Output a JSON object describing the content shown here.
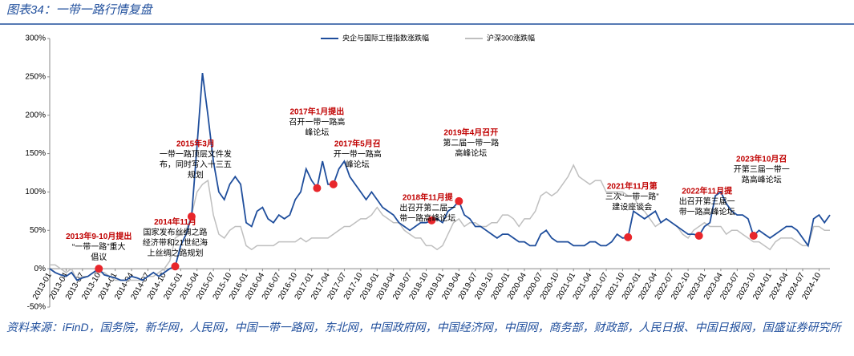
{
  "header": {
    "title": "图表34：一带一路行情复盘"
  },
  "chart_data": {
    "type": "line",
    "x": [
      "2013-01",
      "2013-02",
      "2013-03",
      "2013-04",
      "2013-05",
      "2013-06",
      "2013-07",
      "2013-08",
      "2013-09",
      "2013-10",
      "2013-11",
      "2013-12",
      "2014-01",
      "2014-02",
      "2014-03",
      "2014-04",
      "2014-05",
      "2014-06",
      "2014-07",
      "2014-08",
      "2014-09",
      "2014-10",
      "2014-11",
      "2014-12",
      "2015-01",
      "2015-02",
      "2015-03",
      "2015-04",
      "2015-05",
      "2015-06",
      "2015-07",
      "2015-08",
      "2015-09",
      "2015-10",
      "2015-11",
      "2015-12",
      "2016-01",
      "2016-02",
      "2016-03",
      "2016-04",
      "2016-05",
      "2016-06",
      "2016-07",
      "2016-08",
      "2016-09",
      "2016-10",
      "2016-11",
      "2016-12",
      "2017-01",
      "2017-02",
      "2017-03",
      "2017-04",
      "2017-05",
      "2017-06",
      "2017-07",
      "2017-08",
      "2017-09",
      "2017-10",
      "2017-11",
      "2017-12",
      "2018-01",
      "2018-02",
      "2018-03",
      "2018-04",
      "2018-05",
      "2018-06",
      "2018-07",
      "2018-08",
      "2018-09",
      "2018-10",
      "2018-11",
      "2018-12",
      "2019-01",
      "2019-02",
      "2019-03",
      "2019-04",
      "2019-05",
      "2019-06",
      "2019-07",
      "2019-08",
      "2019-09",
      "2019-10",
      "2019-11",
      "2019-12",
      "2020-01",
      "2020-02",
      "2020-03",
      "2020-04",
      "2020-05",
      "2020-06",
      "2020-07",
      "2020-08",
      "2020-09",
      "2020-10",
      "2020-11",
      "2020-12",
      "2021-01",
      "2021-02",
      "2021-03",
      "2021-04",
      "2021-05",
      "2021-06",
      "2021-07",
      "2021-08",
      "2021-09",
      "2021-10",
      "2021-11",
      "2021-12",
      "2022-01",
      "2022-02",
      "2022-03",
      "2022-04",
      "2022-05",
      "2022-06",
      "2022-07",
      "2022-08",
      "2022-09",
      "2022-10",
      "2022-11",
      "2022-12",
      "2023-01",
      "2023-02",
      "2023-03",
      "2023-04",
      "2023-05",
      "2023-06",
      "2023-07",
      "2023-08",
      "2023-09",
      "2023-10",
      "2023-11",
      "2023-12",
      "2024-01",
      "2024-02",
      "2024-03",
      "2024-04",
      "2024-05",
      "2024-06",
      "2024-07",
      "2024-08",
      "2024-09",
      "2024-10",
      "2024-11",
      "2024-12"
    ],
    "series": [
      {
        "name": "央企与国际工程指数涨跌幅",
        "color": "#1f4e9c",
        "values": [
          0,
          -5,
          -8,
          -10,
          -5,
          -15,
          -12,
          -10,
          -5,
          0,
          -8,
          -10,
          -12,
          -15,
          -15,
          -10,
          -12,
          -15,
          -10,
          -5,
          -10,
          -5,
          0,
          3,
          30,
          45,
          68,
          160,
          255,
          200,
          140,
          100,
          90,
          110,
          120,
          110,
          60,
          55,
          75,
          80,
          65,
          60,
          70,
          65,
          70,
          90,
          100,
          130,
          115,
          105,
          140,
          110,
          110,
          130,
          140,
          120,
          110,
          100,
          90,
          100,
          90,
          80,
          75,
          70,
          60,
          55,
          50,
          55,
          60,
          60,
          63,
          65,
          60,
          75,
          80,
          88,
          70,
          65,
          55,
          55,
          50,
          45,
          40,
          45,
          45,
          40,
          35,
          35,
          30,
          30,
          45,
          50,
          40,
          35,
          35,
          35,
          30,
          30,
          30,
          35,
          35,
          30,
          30,
          35,
          45,
          40,
          41,
          75,
          70,
          65,
          70,
          75,
          60,
          65,
          60,
          55,
          50,
          45,
          45,
          43,
          55,
          60,
          95,
          100,
          85,
          75,
          70,
          70,
          65,
          43,
          50,
          45,
          40,
          45,
          50,
          55,
          55,
          50,
          40,
          30,
          65,
          70,
          60,
          70
        ]
      },
      {
        "name": "沪深300涨跌幅",
        "color": "#bfbfbf",
        "values": [
          5,
          5,
          0,
          -5,
          0,
          -15,
          -10,
          -10,
          -5,
          -5,
          -5,
          -10,
          -15,
          -15,
          -15,
          -15,
          -15,
          -15,
          -10,
          -10,
          -5,
          0,
          10,
          40,
          45,
          50,
          70,
          100,
          110,
          115,
          70,
          45,
          40,
          50,
          55,
          55,
          30,
          25,
          30,
          30,
          30,
          30,
          35,
          35,
          35,
          35,
          40,
          35,
          40,
          40,
          40,
          40,
          45,
          50,
          55,
          55,
          60,
          65,
          65,
          70,
          80,
          70,
          65,
          60,
          60,
          50,
          45,
          40,
          40,
          30,
          30,
          25,
          30,
          45,
          60,
          65,
          55,
          60,
          60,
          55,
          55,
          60,
          60,
          70,
          70,
          65,
          55,
          65,
          65,
          75,
          95,
          100,
          95,
          100,
          110,
          120,
          135,
          120,
          115,
          110,
          115,
          115,
          100,
          100,
          100,
          100,
          95,
          95,
          80,
          75,
          65,
          55,
          60,
          65,
          60,
          55,
          45,
          40,
          50,
          55,
          60,
          55,
          55,
          55,
          45,
          50,
          50,
          45,
          40,
          35,
          35,
          30,
          25,
          35,
          40,
          40,
          40,
          35,
          30,
          30,
          55,
          55,
          50,
          50
        ]
      }
    ],
    "ylim": [
      -50,
      300
    ],
    "yticks": [
      {
        "value": -50,
        "label": "-50%"
      },
      {
        "value": 0,
        "label": "0%"
      },
      {
        "value": 50,
        "label": "50%"
      },
      {
        "value": 100,
        "label": "100%"
      },
      {
        "value": 150,
        "label": "150%"
      },
      {
        "value": 200,
        "label": "200%"
      },
      {
        "value": 250,
        "label": "250%"
      },
      {
        "value": 300,
        "label": "300%"
      }
    ],
    "annotations": [
      {
        "x": "2013-10",
        "head": "2013年9-10月提出",
        "lines": [
          "“一带一路”重大",
          "倡议"
        ]
      },
      {
        "x": "2014-12",
        "head": "2014年11月",
        "lines": [
          "国家发布丝绸之路",
          "经济带和21世纪海",
          "上丝绸之路规划"
        ]
      },
      {
        "x": "2015-03",
        "head": "2015年3月",
        "lines": [
          "一带一路顶层文件发",
          "布，同时写入十三五",
          "规划"
        ]
      },
      {
        "x": "2017-02",
        "head": "2017年1月提出",
        "lines": [
          "召开一带一路高",
          "峰论坛"
        ]
      },
      {
        "x": "2017-05",
        "head": "2017年5月召",
        "lines": [
          "开一带一路高",
          "峰论坛"
        ]
      },
      {
        "x": "2018-11",
        "head": "2018年11月提",
        "lines": [
          "出召开第二届一",
          "带一路高峰论坛"
        ]
      },
      {
        "x": "2019-04",
        "head": "2019年4月召开",
        "lines": [
          "第二届一带一路",
          "高峰论坛"
        ]
      },
      {
        "x": "2021-11",
        "head": "2021年11月第",
        "lines": [
          "三次“一带一路”",
          "建设座谈会"
        ]
      },
      {
        "x": "2022-12",
        "head": "2022年11月提",
        "lines": [
          "出召开第三届一",
          "带一路高峰论坛"
        ]
      },
      {
        "x": "2023-10",
        "head": "2023年10月召",
        "lines": [
          "开第三届一带一",
          "路高峰论坛"
        ]
      }
    ]
  },
  "footer": {
    "source": "资料来源：iFinD，国务院，新华网，人民网，中国一带一路网，东北网，中国政府网，中国经济网，中国网，商务部，财政部，人民日报、中国日报网，国盛证券研究所"
  }
}
